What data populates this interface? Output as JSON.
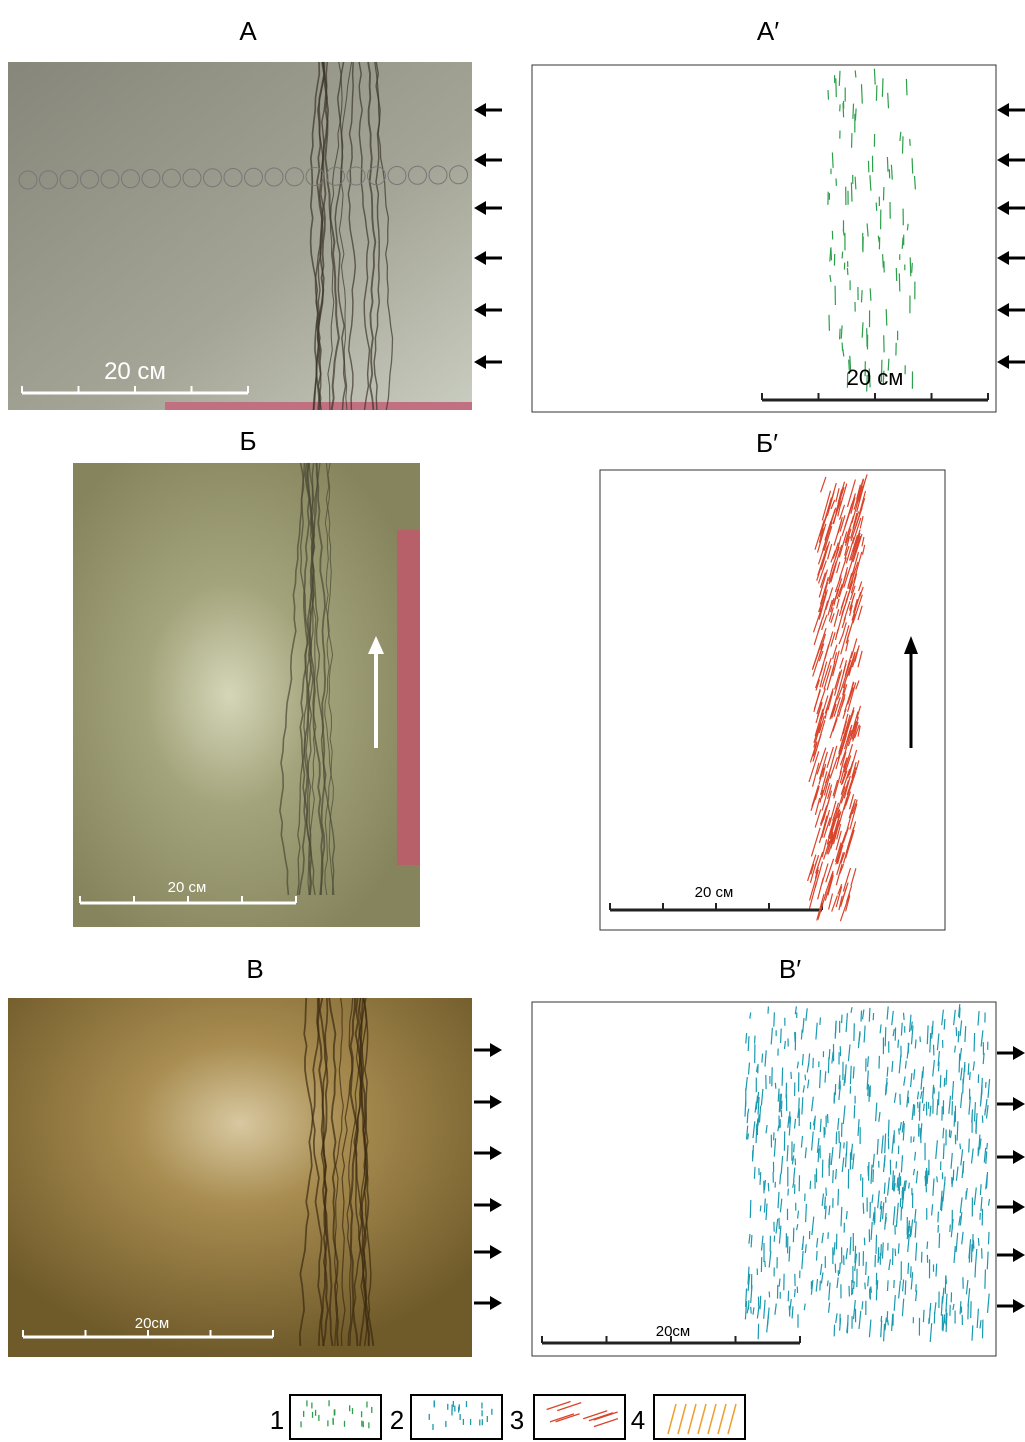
{
  "panels": [
    {
      "label": "А",
      "scale_label": "20 см"
    },
    {
      "label": "А′",
      "scale_label": "20 см"
    },
    {
      "label": "Б",
      "scale_label": "20 см"
    },
    {
      "label": "Б′",
      "scale_label": "20 см"
    },
    {
      "label": "В",
      "scale_label": "20см"
    },
    {
      "label": "В′",
      "scale_label": "20см"
    }
  ],
  "legend": [
    "1",
    "2",
    "3",
    "4"
  ]
}
